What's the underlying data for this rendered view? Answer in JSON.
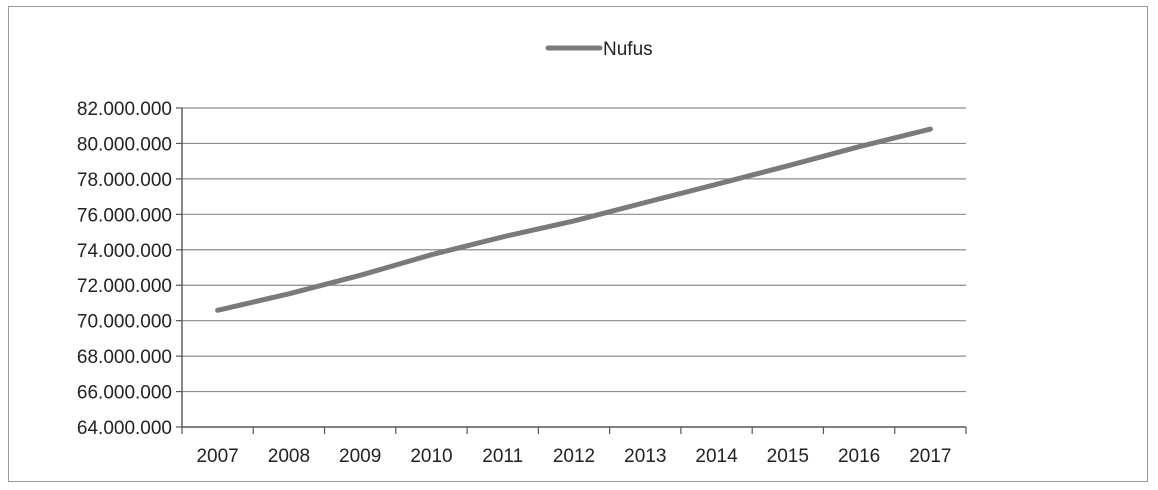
{
  "chart_data": {
    "type": "line",
    "categories": [
      "2007",
      "2008",
      "2009",
      "2010",
      "2011",
      "2012",
      "2013",
      "2014",
      "2015",
      "2016",
      "2017"
    ],
    "series": [
      {
        "name": "Nufus",
        "values": [
          70586256,
          71517100,
          72561312,
          73722988,
          74724269,
          75627384,
          76667864,
          77695904,
          78741053,
          79814871,
          80810525
        ],
        "color": "#7a7a7a"
      }
    ],
    "ylim": [
      64000000,
      82000000
    ],
    "yticks": [
      "64.000.000",
      "66.000.000",
      "68.000.000",
      "70.000.000",
      "72.000.000",
      "74.000.000",
      "76.000.000",
      "78.000.000",
      "80.000.000",
      "82.000.000"
    ],
    "ytick_values": [
      64000000,
      66000000,
      68000000,
      70000000,
      72000000,
      74000000,
      76000000,
      78000000,
      80000000,
      82000000
    ],
    "grid": true,
    "legend_position": "top"
  }
}
